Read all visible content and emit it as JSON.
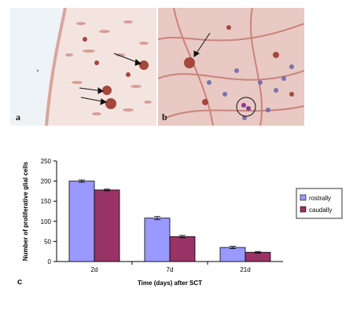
{
  "panels": {
    "a": {
      "label": "a"
    },
    "b": {
      "label": "b"
    },
    "c": {
      "label": "c"
    }
  },
  "colors": {
    "rostrally": "#9999ff",
    "caudally": "#993366",
    "stain_background": "#e8c9c4",
    "stain_dark": "#a5473c"
  },
  "chart_data": {
    "type": "bar",
    "categories": [
      "2d",
      "7d",
      "21d"
    ],
    "series": [
      {
        "name": "rostrally",
        "values": [
          200,
          108,
          35
        ],
        "errors": [
          3,
          4,
          3
        ]
      },
      {
        "name": "caudally",
        "values": [
          178,
          62,
          23
        ],
        "errors": [
          2,
          3,
          2
        ]
      }
    ],
    "xlabel": "Time (days) after SCT",
    "ylabel": "Number of proliferative glial cells",
    "ylim": [
      0,
      250
    ],
    "yticks": [
      0,
      50,
      100,
      150,
      200,
      250
    ],
    "legend_position": "right",
    "grid": false
  }
}
